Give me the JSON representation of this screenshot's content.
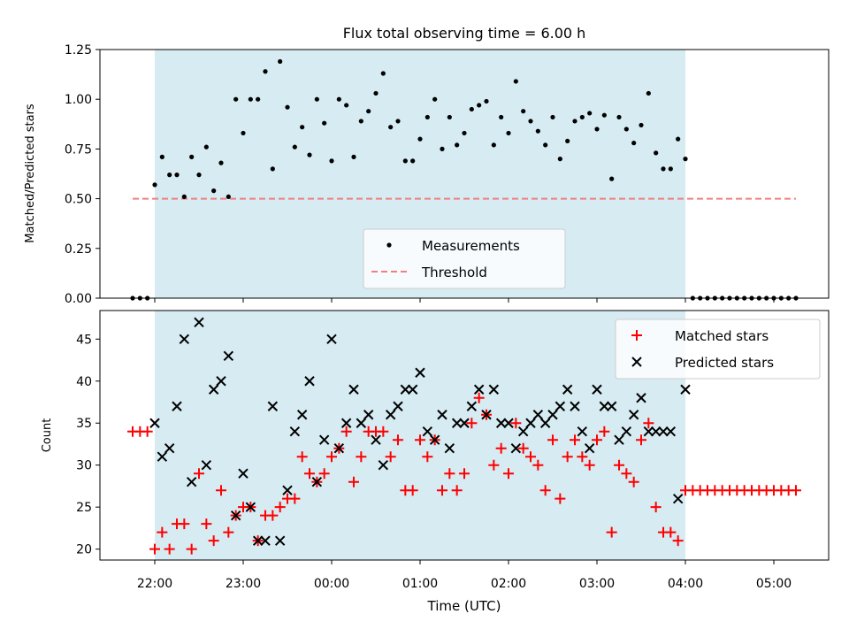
{
  "chart_data": [
    {
      "type": "scatter",
      "title": "Flux total observing time = 6.00 h",
      "ylabel": "Matched/Predicted stars",
      "xlabel": "",
      "ylim": [
        0,
        1.25
      ],
      "yticks": [
        "0.00",
        "0.25",
        "0.50",
        "0.75",
        "1.00",
        "1.25"
      ],
      "grid": false,
      "legend_position": "bottom-center",
      "shaded_color": "#add8e6",
      "series": [
        {
          "name": "Measurements",
          "color": "#000000",
          "marker": "dot",
          "x": [
            "21:45",
            "21:50",
            "21:55",
            "22:00",
            "22:05",
            "22:10",
            "22:15",
            "22:20",
            "22:25",
            "22:30",
            "22:35",
            "22:40",
            "22:45",
            "22:50",
            "22:55",
            "23:00",
            "23:05",
            "23:10",
            "23:15",
            "23:20",
            "23:25",
            "23:30",
            "23:35",
            "23:40",
            "23:45",
            "23:50",
            "23:55",
            "00:00",
            "00:05",
            "00:10",
            "00:15",
            "00:20",
            "00:25",
            "00:30",
            "00:35",
            "00:40",
            "00:45",
            "00:50",
            "00:55",
            "01:00",
            "01:05",
            "01:10",
            "01:15",
            "01:20",
            "01:25",
            "01:30",
            "01:35",
            "01:40",
            "01:45",
            "01:50",
            "01:55",
            "02:00",
            "02:05",
            "02:10",
            "02:15",
            "02:20",
            "02:25",
            "02:30",
            "02:35",
            "02:40",
            "02:45",
            "02:50",
            "02:55",
            "03:00",
            "03:05",
            "03:10",
            "03:15",
            "03:20",
            "03:25",
            "03:30",
            "03:35",
            "03:40",
            "03:45",
            "03:50",
            "03:55",
            "04:00",
            "04:05",
            "04:10",
            "04:15",
            "04:20",
            "04:25",
            "04:30",
            "04:35",
            "04:40",
            "04:45",
            "04:50",
            "04:55",
            "05:00",
            "05:05",
            "05:10",
            "05:15"
          ],
          "values": [
            0.0,
            0.0,
            0.0,
            0.57,
            0.71,
            0.62,
            0.62,
            0.51,
            0.71,
            0.62,
            0.76,
            0.54,
            0.68,
            0.51,
            1.0,
            0.83,
            1.0,
            1.0,
            1.14,
            0.65,
            1.19,
            0.96,
            0.76,
            0.86,
            0.72,
            1.0,
            0.88,
            0.69,
            1.0,
            0.97,
            0.71,
            0.89,
            0.94,
            1.03,
            1.13,
            0.86,
            0.89,
            0.69,
            0.69,
            0.8,
            0.91,
            1.0,
            0.75,
            0.91,
            0.77,
            0.83,
            0.95,
            0.97,
            0.99,
            0.77,
            0.91,
            0.83,
            1.09,
            0.94,
            0.89,
            0.84,
            0.77,
            0.91,
            0.7,
            0.79,
            0.89,
            0.91,
            0.93,
            0.85,
            0.92,
            0.6,
            0.91,
            0.85,
            0.78,
            0.87,
            1.03,
            0.73,
            0.65,
            0.65,
            0.8,
            0.7,
            0.0,
            0.0,
            0.0,
            0.0,
            0.0,
            0.0,
            0.0,
            0.0,
            0.0,
            0.0,
            0.0,
            0.0,
            0.0,
            0.0,
            0.0
          ]
        },
        {
          "name": "Threshold",
          "color": "#f08080",
          "style": "dashed",
          "x": [
            "21:45",
            "05:15"
          ],
          "values": [
            0.5,
            0.5
          ]
        }
      ]
    },
    {
      "type": "scatter",
      "title": "",
      "ylabel": "Count",
      "xlabel": "Time (UTC)",
      "ylim": [
        18.7,
        48.4
      ],
      "yticks": [
        "20",
        "25",
        "30",
        "35",
        "40",
        "45"
      ],
      "xticks": [
        "22:00",
        "23:00",
        "00:00",
        "01:00",
        "02:00",
        "03:00",
        "04:00",
        "05:00"
      ],
      "grid": false,
      "legend_position": "top-right",
      "shaded_color": "#add8e6",
      "series": [
        {
          "name": "Matched stars",
          "color": "#ff0000",
          "marker": "plus",
          "x": [
            "21:45",
            "21:50",
            "21:55",
            "22:00",
            "22:05",
            "22:10",
            "22:15",
            "22:20",
            "22:25",
            "22:30",
            "22:35",
            "22:40",
            "22:45",
            "22:50",
            "22:55",
            "23:00",
            "23:05",
            "23:10",
            "23:15",
            "23:20",
            "23:25",
            "23:30",
            "23:35",
            "23:40",
            "23:45",
            "23:50",
            "23:55",
            "00:00",
            "00:05",
            "00:10",
            "00:15",
            "00:20",
            "00:25",
            "00:30",
            "00:35",
            "00:40",
            "00:45",
            "00:50",
            "00:55",
            "01:00",
            "01:05",
            "01:10",
            "01:15",
            "01:20",
            "01:25",
            "01:30",
            "01:35",
            "01:40",
            "01:45",
            "01:50",
            "01:55",
            "02:00",
            "02:05",
            "02:10",
            "02:15",
            "02:20",
            "02:25",
            "02:30",
            "02:35",
            "02:40",
            "02:45",
            "02:50",
            "02:55",
            "03:00",
            "03:05",
            "03:10",
            "03:15",
            "03:20",
            "03:25",
            "03:30",
            "03:35",
            "03:40",
            "03:45",
            "03:50",
            "03:55",
            "04:00",
            "04:05",
            "04:10",
            "04:15",
            "04:20",
            "04:25",
            "04:30",
            "04:35",
            "04:40",
            "04:45",
            "04:50",
            "04:55",
            "05:00",
            "05:05",
            "05:10",
            "05:15"
          ],
          "values": [
            34,
            34,
            34,
            20,
            22,
            20,
            23,
            23,
            20,
            29,
            23,
            21,
            27,
            22,
            24,
            25,
            25,
            21,
            24,
            24,
            25,
            26,
            26,
            31,
            29,
            28,
            29,
            31,
            32,
            34,
            28,
            31,
            34,
            34,
            34,
            31,
            33,
            27,
            27,
            33,
            31,
            33,
            27,
            29,
            27,
            29,
            35,
            38,
            36,
            30,
            32,
            29,
            35,
            32,
            31,
            30,
            27,
            33,
            26,
            31,
            33,
            31,
            30,
            33,
            34,
            22,
            30,
            29,
            28,
            33,
            35,
            25,
            22,
            22,
            21,
            27,
            27,
            27,
            27,
            27,
            27,
            27,
            27,
            27,
            27,
            27,
            27,
            27,
            27,
            27,
            27
          ]
        },
        {
          "name": "Predicted stars",
          "color": "#000000",
          "marker": "x",
          "x": [
            "22:00",
            "22:05",
            "22:10",
            "22:15",
            "22:20",
            "22:25",
            "22:30",
            "22:35",
            "22:40",
            "22:45",
            "22:50",
            "22:55",
            "23:00",
            "23:05",
            "23:10",
            "23:15",
            "23:20",
            "23:25",
            "23:30",
            "23:35",
            "23:40",
            "23:45",
            "23:50",
            "23:55",
            "00:00",
            "00:05",
            "00:10",
            "00:15",
            "00:20",
            "00:25",
            "00:30",
            "00:35",
            "00:40",
            "00:45",
            "00:50",
            "00:55",
            "01:00",
            "01:05",
            "01:10",
            "01:15",
            "01:20",
            "01:25",
            "01:30",
            "01:35",
            "01:40",
            "01:45",
            "01:50",
            "01:55",
            "02:00",
            "02:05",
            "02:10",
            "02:15",
            "02:20",
            "02:25",
            "02:30",
            "02:35",
            "02:40",
            "02:45",
            "02:50",
            "02:55",
            "03:00",
            "03:05",
            "03:10",
            "03:15",
            "03:20",
            "03:25",
            "03:30",
            "03:35",
            "03:40",
            "03:45",
            "03:50",
            "03:55",
            "04:00"
          ],
          "values": [
            35,
            31,
            32,
            37,
            45,
            28,
            47,
            30,
            39,
            40,
            43,
            24,
            29,
            25,
            21,
            21,
            37,
            21,
            27,
            34,
            36,
            40,
            28,
            33,
            45,
            32,
            35,
            39,
            35,
            36,
            33,
            30,
            36,
            37,
            39,
            39,
            41,
            34,
            33,
            36,
            32,
            35,
            35,
            37,
            39,
            36,
            39,
            35,
            35,
            32,
            34,
            35,
            36,
            35,
            36,
            37,
            39,
            37,
            34,
            32,
            39,
            37,
            37,
            33,
            34,
            36,
            38,
            34,
            34,
            34,
            34,
            26,
            39
          ]
        }
      ]
    }
  ]
}
